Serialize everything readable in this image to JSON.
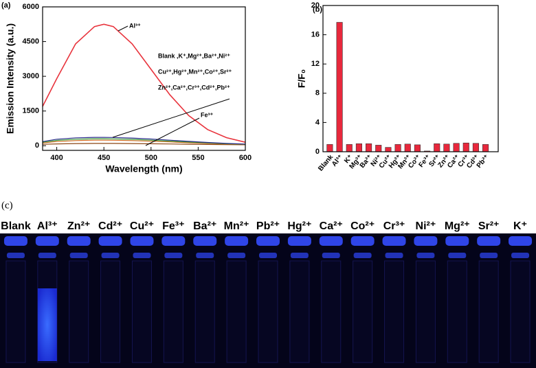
{
  "chart_data": [
    {
      "type": "line",
      "panel_label": "(a)",
      "x_label": "Wavelength (nm)",
      "y_label": "Emission Intensity (a.u.)",
      "xlim": [
        385,
        600
      ],
      "ylim": [
        -200,
        6000
      ],
      "xticks": [
        400,
        450,
        500,
        550,
        600
      ],
      "yticks": [
        0,
        1500,
        3000,
        4500,
        6000
      ],
      "x": [
        385,
        400,
        420,
        440,
        450,
        460,
        480,
        500,
        520,
        540,
        560,
        580,
        600
      ],
      "series": [
        {
          "name": "Al³⁺",
          "color": "#e8333c",
          "values": [
            1700,
            2900,
            4400,
            5150,
            5250,
            5150,
            4400,
            3300,
            2200,
            1300,
            700,
            350,
            150
          ]
        },
        {
          "color": "#2b2b8c",
          "values": [
            180,
            280,
            340,
            360,
            360,
            355,
            330,
            290,
            240,
            190,
            140,
            100,
            70
          ]
        },
        {
          "color": "#3a9a3a",
          "values": [
            150,
            230,
            280,
            300,
            300,
            295,
            275,
            240,
            200,
            160,
            120,
            85,
            60
          ]
        },
        {
          "color": "#d2691e",
          "values": [
            120,
            180,
            220,
            240,
            240,
            235,
            220,
            195,
            165,
            130,
            100,
            70,
            50
          ]
        },
        {
          "name": "Fe³⁺",
          "color": "#8b4513",
          "values": [
            60,
            80,
            95,
            100,
            100,
            100,
            95,
            85,
            75,
            65,
            55,
            45,
            40
          ]
        }
      ],
      "annotations": [
        "Al³⁺",
        "Blank ,K⁺,Mg²⁺,Ba²⁺,Ni²⁺",
        "Cu²⁺,Hg²⁺,Mn²⁺,Co²⁺,Sr²⁺",
        "Zn²⁺,Ca²⁺,Cr³⁺,Cd²⁺,Pb²⁺",
        "Fe³⁺"
      ]
    },
    {
      "type": "bar",
      "panel_label": "(b)",
      "y_label": "F/F₀",
      "color": "#e8283c",
      "ylim": [
        0,
        20
      ],
      "yticks": [
        0,
        4,
        8,
        12,
        16,
        20
      ],
      "categories": [
        "Blank",
        "Al³⁺",
        "K⁺",
        "Mg²⁺",
        "Ba²⁺",
        "Ni²⁺",
        "Cu²⁺",
        "Hg²⁺",
        "Mn²⁺",
        "Co²⁺",
        "Fe³⁺",
        "Sr²⁺",
        "Zn²⁺",
        "Ca²⁺",
        "Cr³⁺",
        "Cd²⁺",
        "Pb²⁺"
      ],
      "values": [
        1.0,
        17.7,
        1.0,
        1.1,
        1.1,
        0.9,
        0.6,
        1.0,
        1.05,
        0.95,
        0.1,
        1.1,
        1.05,
        1.15,
        1.2,
        1.15,
        1.0
      ]
    }
  ],
  "photo": {
    "panel_label": "(c)",
    "labels": [
      "Blank",
      "Al³⁺",
      "Zn²⁺",
      "Cd²⁺",
      "Cu²⁺",
      "Fe³⁺",
      "Ba²⁺",
      "Mn²⁺",
      "Pb²⁺",
      "Hg²⁺",
      "Ca²⁺",
      "Co²⁺",
      "Cr³⁺",
      "Ni²⁺",
      "Mg²⁺",
      "Sr²⁺",
      "K⁺"
    ]
  }
}
